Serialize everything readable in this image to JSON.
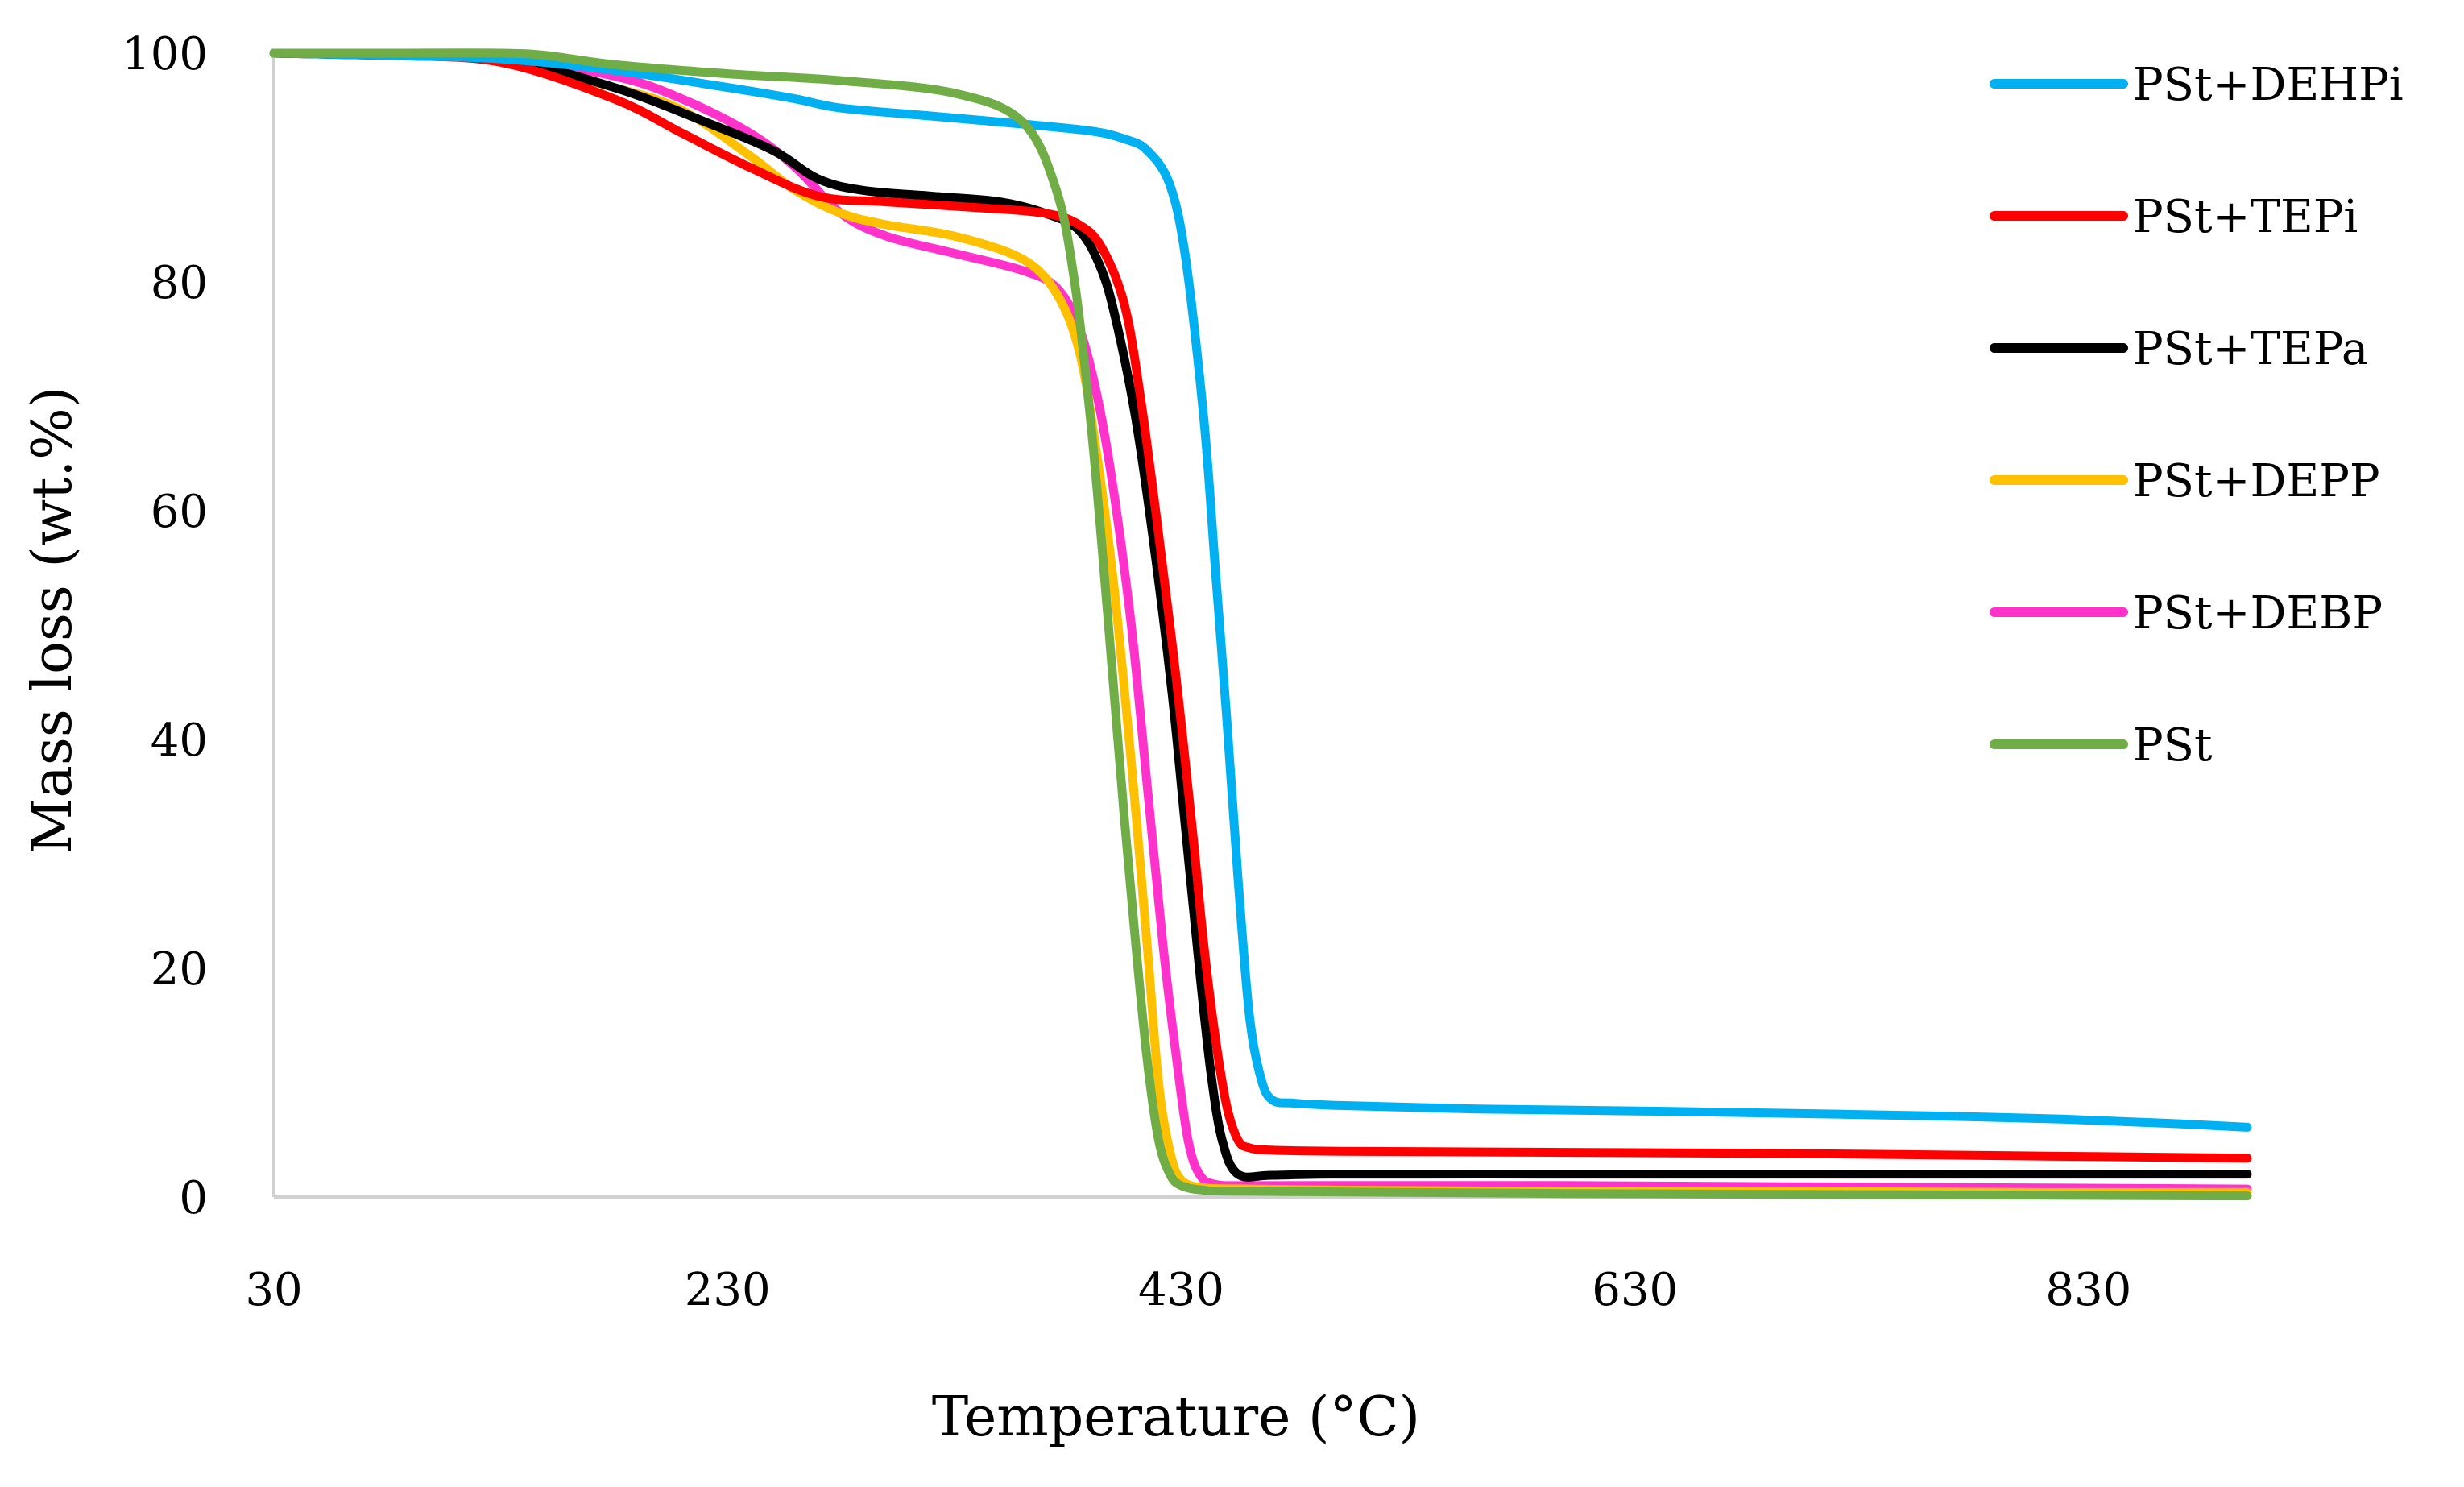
{
  "chart_data": {
    "type": "line",
    "title": "",
    "xlabel": "Temperature (°C)",
    "ylabel": "Mass loss (wt.%)",
    "xlim": [
      30,
      900
    ],
    "ylim": [
      0,
      100
    ],
    "xticks": [
      30,
      230,
      430,
      630,
      830
    ],
    "yticks": [
      0,
      20,
      40,
      60,
      80,
      100
    ],
    "xtick_labels": [
      "30",
      "230",
      "430",
      "630",
      "830"
    ],
    "ytick_labels": [
      "0",
      "20",
      "40",
      "60",
      "80",
      "100"
    ],
    "grid": false,
    "legend_position": "right",
    "series": [
      {
        "name": "PSt+DEHPi",
        "color": "#00B0F0",
        "x": [
          30,
          80,
          130,
          180,
          230,
          260,
          280,
          320,
          360,
          390,
          405,
          415,
          425,
          432,
          440,
          445,
          450,
          455,
          460,
          465,
          470,
          480,
          500,
          560,
          640,
          700,
          760,
          820,
          870,
          900
        ],
        "y": [
          100,
          99.8,
          99.5,
          98.5,
          97,
          96,
          95.2,
          94.5,
          93.8,
          93.2,
          92.5,
          91.5,
          88.5,
          82,
          68,
          55,
          42,
          28,
          16,
          10.5,
          8.5,
          8.2,
          8.0,
          7.7,
          7.5,
          7.3,
          7.1,
          6.8,
          6.4,
          6.1
        ]
      },
      {
        "name": "PSt+TEPi",
        "color": "#FF0000",
        "x": [
          30,
          80,
          130,
          180,
          210,
          240,
          270,
          300,
          340,
          370,
          385,
          395,
          405,
          412,
          420,
          428,
          435,
          440,
          445,
          450,
          455,
          460,
          470,
          500,
          600,
          700,
          800,
          900
        ],
        "y": [
          100,
          99.8,
          99.2,
          96,
          93,
          90,
          87.5,
          87,
          86.5,
          86,
          85,
          83,
          78,
          70,
          58,
          45,
          32,
          22,
          14,
          8,
          5,
          4.3,
          4.1,
          4.0,
          3.9,
          3.8,
          3.6,
          3.4
        ]
      },
      {
        "name": "PSt+TEPa",
        "color": "#000000",
        "x": [
          30,
          80,
          130,
          180,
          220,
          250,
          270,
          290,
          320,
          350,
          370,
          385,
          395,
          402,
          410,
          418,
          426,
          432,
          438,
          443,
          448,
          455,
          470,
          500,
          600,
          700,
          800,
          900
        ],
        "y": [
          100,
          99.8,
          99.5,
          97,
          94,
          91.5,
          89,
          88,
          87.5,
          87,
          86,
          84.5,
          81,
          76,
          68,
          57,
          44,
          32,
          20,
          11,
          5,
          2,
          1.9,
          2.0,
          2.0,
          2.0,
          2.0,
          2.0
        ]
      },
      {
        "name": "PSt+DEPP",
        "color": "#FFC000",
        "x": [
          30,
          80,
          130,
          180,
          210,
          240,
          260,
          280,
          300,
          330,
          360,
          375,
          385,
          392,
          400,
          408,
          415,
          420,
          425,
          430,
          440,
          460,
          500,
          600,
          700,
          800,
          900
        ],
        "y": [
          100,
          99.8,
          99.3,
          97,
          95,
          91,
          88,
          86,
          85,
          84,
          82,
          79,
          74,
          66,
          54,
          38,
          22,
          10,
          4,
          1.5,
          0.8,
          0.7,
          0.6,
          0.5,
          0.5,
          0.4,
          0.4
        ]
      },
      {
        "name": "PSt+DEBP",
        "color": "#FF33CC",
        "x": [
          30,
          80,
          130,
          180,
          210,
          240,
          260,
          280,
          300,
          330,
          360,
          375,
          385,
          393,
          400,
          408,
          415,
          422,
          428,
          433,
          438,
          445,
          460,
          500,
          600,
          700,
          800,
          900
        ],
        "y": [
          100,
          99.8,
          99.5,
          98,
          96,
          93,
          90,
          86,
          84,
          82.5,
          81,
          79.5,
          76,
          70,
          62,
          50,
          36,
          22,
          12,
          5,
          2,
          1.1,
          1.0,
          1.0,
          1.0,
          0.9,
          0.8,
          0.7
        ]
      },
      {
        "name": "PSt",
        "color": "#70AD47",
        "x": [
          30,
          80,
          130,
          150,
          180,
          230,
          280,
          330,
          360,
          375,
          383,
          390,
          395,
          400,
          405,
          410,
          415,
          420,
          425,
          430,
          440,
          460,
          600,
          900
        ],
        "y": [
          100,
          100,
          100,
          99.8,
          99,
          98.2,
          97.6,
          96.5,
          94,
          88,
          80,
          68,
          57,
          45,
          33,
          22,
          12,
          5,
          2,
          1,
          0.6,
          0.5,
          0.3,
          0.1
        ]
      }
    ]
  }
}
